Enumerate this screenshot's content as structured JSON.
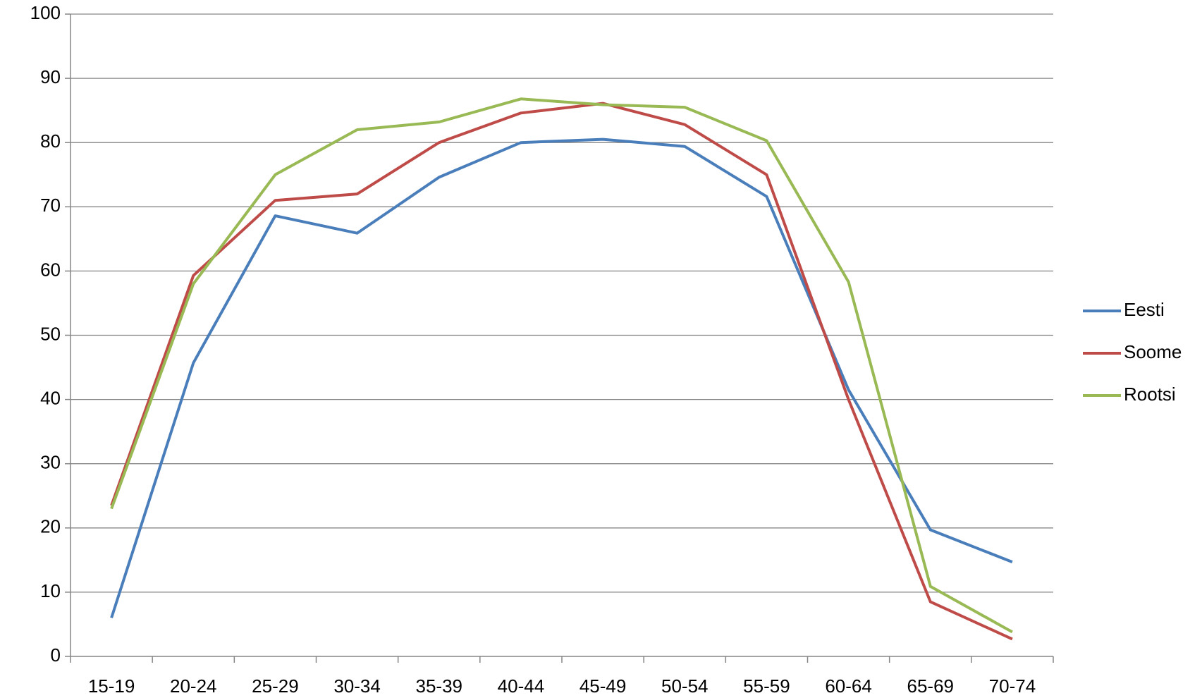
{
  "chart_data": {
    "type": "line",
    "categories": [
      "15-19",
      "20-24",
      "25-29",
      "30-34",
      "35-39",
      "40-44",
      "45-49",
      "50-54",
      "55-59",
      "60-64",
      "65-69",
      "70-74"
    ],
    "series": [
      {
        "name": "Eesti",
        "color": "#4a7ebb",
        "values": [
          6,
          45.7,
          68.6,
          65.9,
          74.6,
          80,
          80.5,
          79.4,
          71.6,
          41.5,
          19.7,
          14.7
        ]
      },
      {
        "name": "Soome",
        "color": "#be4b48",
        "values": [
          23.5,
          59.3,
          71,
          72,
          80,
          84.6,
          86.1,
          82.8,
          75,
          40,
          8.5,
          2.7
        ]
      },
      {
        "name": "Rootsi",
        "color": "#98b954",
        "values": [
          23,
          58,
          75,
          82,
          83.2,
          86.8,
          85.9,
          85.5,
          80.3,
          58.3,
          10.9,
          3.8
        ]
      }
    ],
    "ylim": [
      0,
      100
    ],
    "yticks": [
      0,
      10,
      20,
      30,
      40,
      50,
      60,
      70,
      80,
      90,
      100
    ],
    "grid": true,
    "legend": "right"
  }
}
